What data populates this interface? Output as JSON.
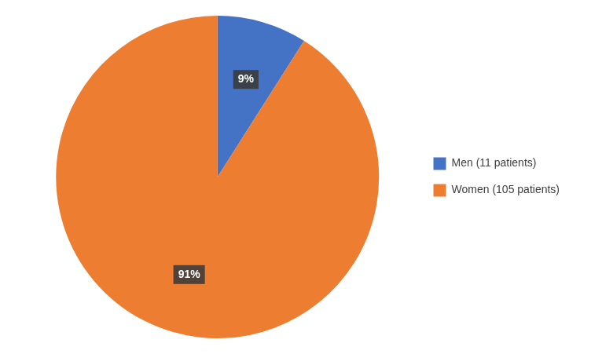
{
  "chart_data": {
    "type": "pie",
    "categories": [
      "Men (11 patients)",
      "Women (105 patients)"
    ],
    "values": [
      9,
      91
    ],
    "value_labels": [
      "9%",
      "91%"
    ],
    "colors": [
      "#4472C4",
      "#ED7D31"
    ],
    "data_labels": true,
    "legend": "right"
  }
}
